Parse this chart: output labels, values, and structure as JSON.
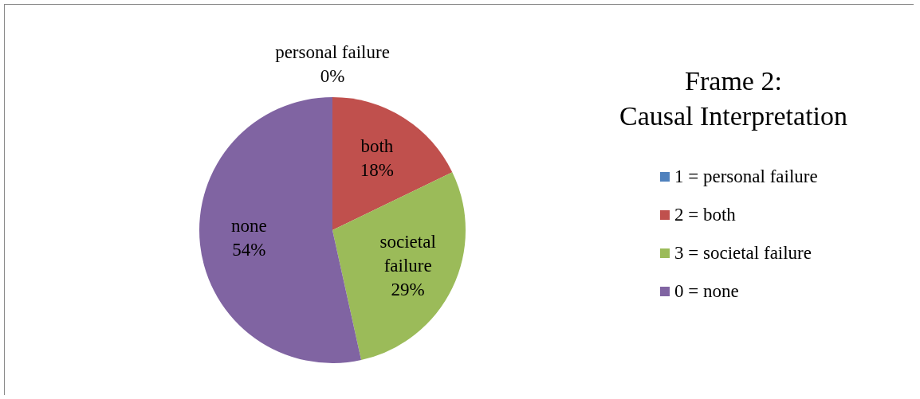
{
  "chart_data": {
    "type": "pie",
    "title": "Frame 2:\nCausal Interpretation",
    "categories": [
      "1 = personal failure",
      "2 = both",
      "3 = societal failure",
      "0 = none"
    ],
    "values": [
      0,
      18,
      29,
      54
    ],
    "colors": [
      "#4f81bd",
      "#c0504d",
      "#9bbb59",
      "#8064a2"
    ],
    "value_labels": [
      "personal failure\n0%",
      "both\n18%",
      "societal\nfailure\n29%",
      "none\n54%"
    ],
    "legend": "right"
  }
}
